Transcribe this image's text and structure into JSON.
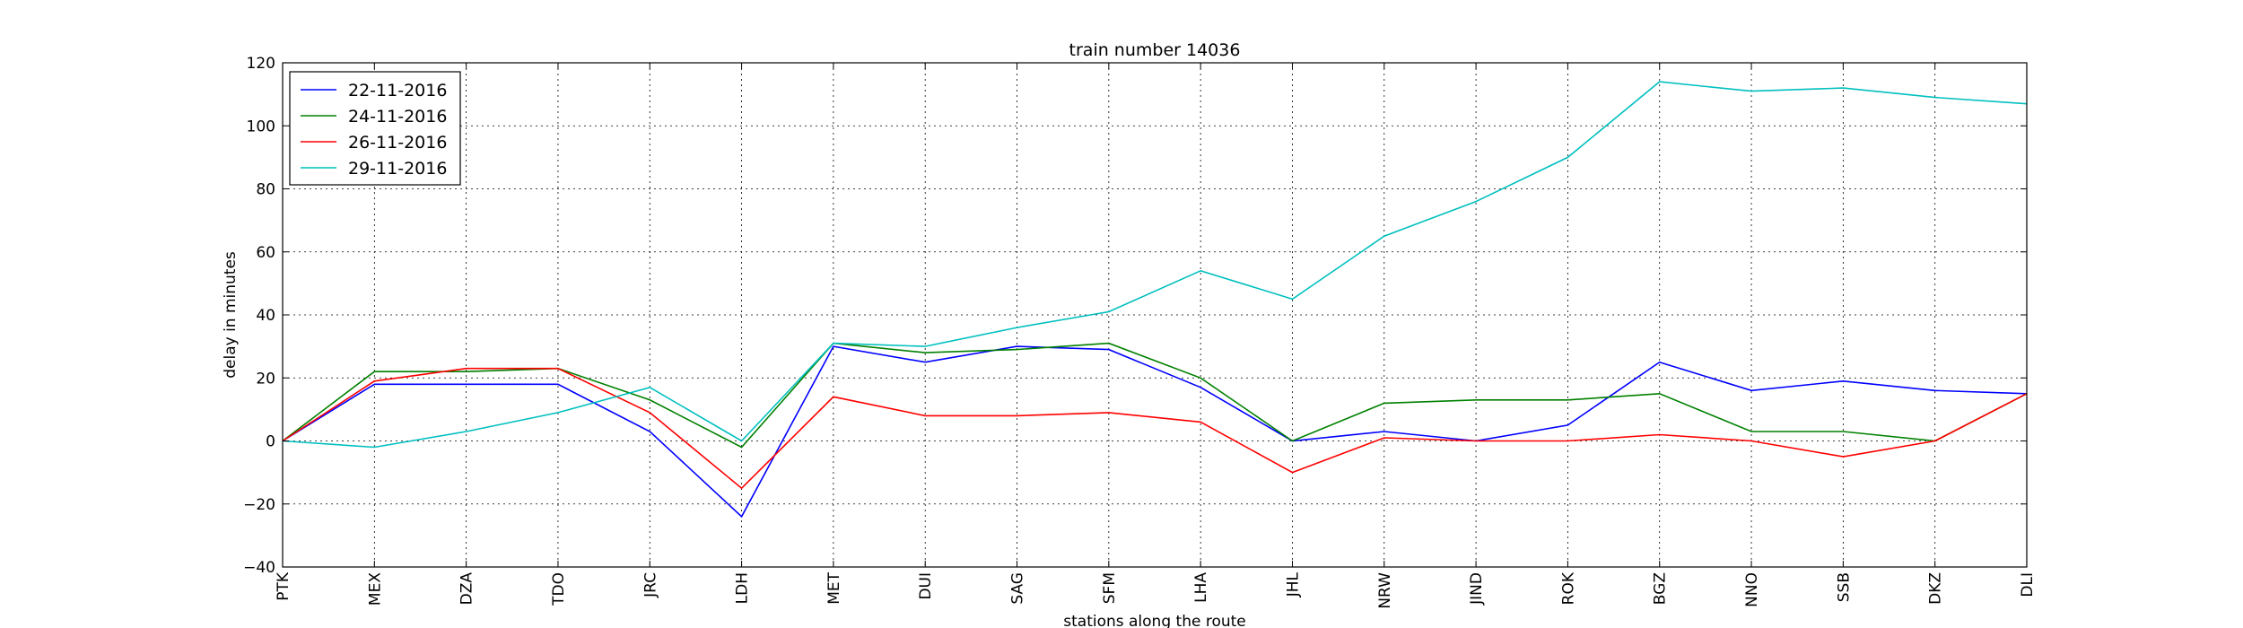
{
  "chart_data": {
    "type": "line",
    "title": "train number 14036",
    "xlabel": "stations along the route",
    "ylabel": "delay in minutes",
    "categories": [
      "PTK",
      "MEX",
      "DZA",
      "TDO",
      "JRC",
      "LDH",
      "MET",
      "DUI",
      "SAG",
      "SFM",
      "LHA",
      "JHL",
      "NRW",
      "JIND",
      "ROK",
      "BGZ",
      "NNO",
      "SSB",
      "DKZ",
      "DLI"
    ],
    "ylim": [
      -40,
      120
    ],
    "yticks": [
      -40,
      -20,
      0,
      20,
      40,
      60,
      80,
      100,
      120
    ],
    "ytick_labels": [
      "−40",
      "−20",
      "0",
      "20",
      "40",
      "60",
      "80",
      "100",
      "120"
    ],
    "grid": true,
    "legend_position": "top-left",
    "series": [
      {
        "name": "22-11-2016",
        "color": "#0000ff",
        "values": [
          0,
          18,
          18,
          18,
          3,
          -24,
          30,
          25,
          30,
          29,
          17,
          0,
          3,
          0,
          5,
          25,
          16,
          19,
          16,
          15
        ]
      },
      {
        "name": "24-11-2016",
        "color": "#008000",
        "values": [
          0,
          22,
          22,
          23,
          13,
          -2,
          31,
          28,
          29,
          31,
          20,
          0,
          12,
          13,
          13,
          15,
          3,
          3,
          0,
          15
        ]
      },
      {
        "name": "26-11-2016",
        "color": "#ff0000",
        "values": [
          0,
          19,
          23,
          23,
          9,
          -15,
          14,
          8,
          8,
          9,
          6,
          -10,
          1,
          0,
          0,
          2,
          0,
          -5,
          0,
          15
        ]
      },
      {
        "name": "29-11-2016",
        "color": "#00bfbf",
        "values": [
          0,
          -2,
          3,
          9,
          17,
          0,
          31,
          30,
          36,
          41,
          54,
          45,
          65,
          76,
          90,
          114,
          111,
          112,
          109,
          107
        ]
      }
    ]
  }
}
